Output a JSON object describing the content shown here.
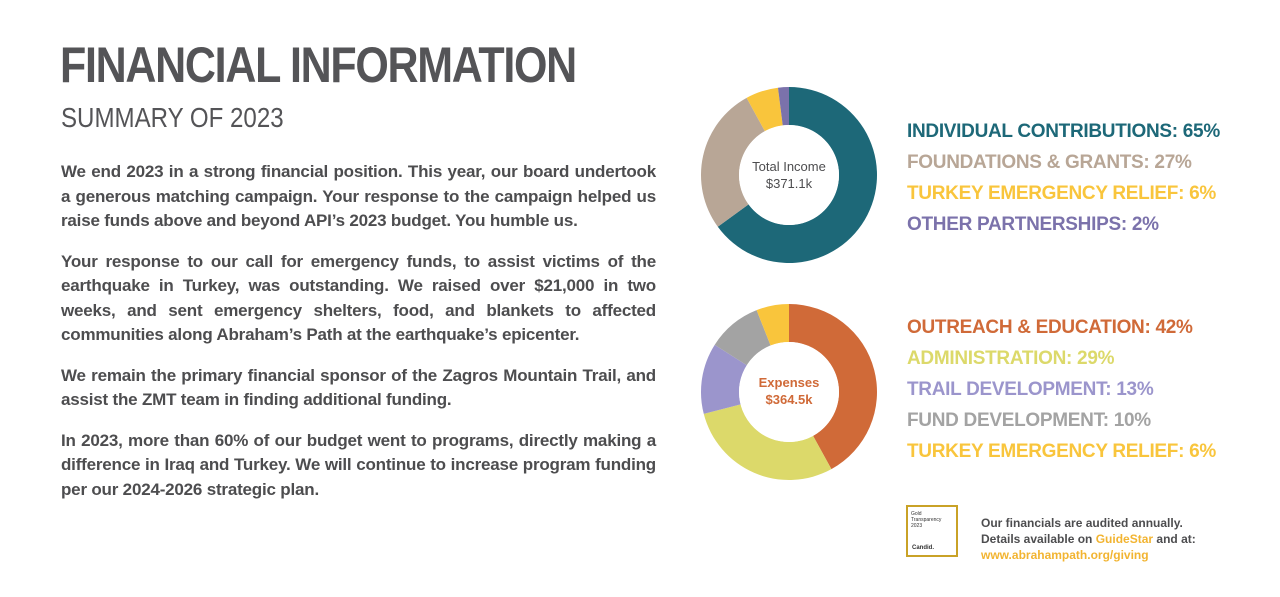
{
  "header": {
    "title": "FINANCIAL INFORMATION",
    "subtitle": "SUMMARY OF 2023"
  },
  "paragraphs": [
    "We end 2023 in a strong financial position. This year, our board undertook a generous matching campaign. Your response to the campaign helped us raise funds above and beyond API’s 2023 budget. You humble us.",
    "Your response to our call for emergency funds, to assist victims of the earthquake in Turkey, was outstanding. We raised over $21,000 in two weeks, and sent emergency shelters, food, and blankets to affected communities along Abraham’s Path at the earthquake’s epicenter.",
    "We remain the primary financial sponsor of the Zagros Mountain Trail, and assist the ZMT team in finding additional funding.",
    "In 2023, more than 60% of our budget went to programs, directly making a difference in Iraq and Turkey. We will continue to increase program funding per our 2024-2026 strategic plan."
  ],
  "chart_data": [
    {
      "type": "pie",
      "center_label": "Total Income",
      "center_value": "$371.1k",
      "center_color": "#4d4d4f",
      "categories": [
        "INDIVIDUAL CONTRIBUTIONS: 65%",
        "FOUNDATIONS & GRANTS: 27%",
        "TURKEY EMERGENCY RELIEF: 6%",
        "OTHER PARTNERSHIPS: 2%"
      ],
      "values": [
        65,
        27,
        6,
        2
      ],
      "colors": [
        "#1d6878",
        "#b8a696",
        "#f9c53c",
        "#7b72ab"
      ]
    },
    {
      "type": "pie",
      "center_label": "Expenses",
      "center_value": "$364.5k",
      "center_color": "#d06a38",
      "categories": [
        "OUTREACH & EDUCATION: 42%",
        "ADMINISTRATION: 29%",
        "TRAIL DEVELOPMENT: 13%",
        "FUND DEVELOPMENT: 10%",
        "TURKEY EMERGENCY RELIEF: 6%"
      ],
      "values": [
        42,
        29,
        13,
        10,
        6
      ],
      "colors": [
        "#d06a38",
        "#dcd96a",
        "#9b95cc",
        "#a3a3a3",
        "#f9c53c"
      ]
    }
  ],
  "badge": {
    "line1": "Gold",
    "line2": "Transparency",
    "line3": "2023",
    "brand": "Candid."
  },
  "audit": {
    "line1": "Our financials are audited annually.",
    "line2_prefix": "Details available on ",
    "line2_link": "GuideStar",
    "line2_suffix": " and at:",
    "url": "www.abrahampath.org/giving"
  }
}
